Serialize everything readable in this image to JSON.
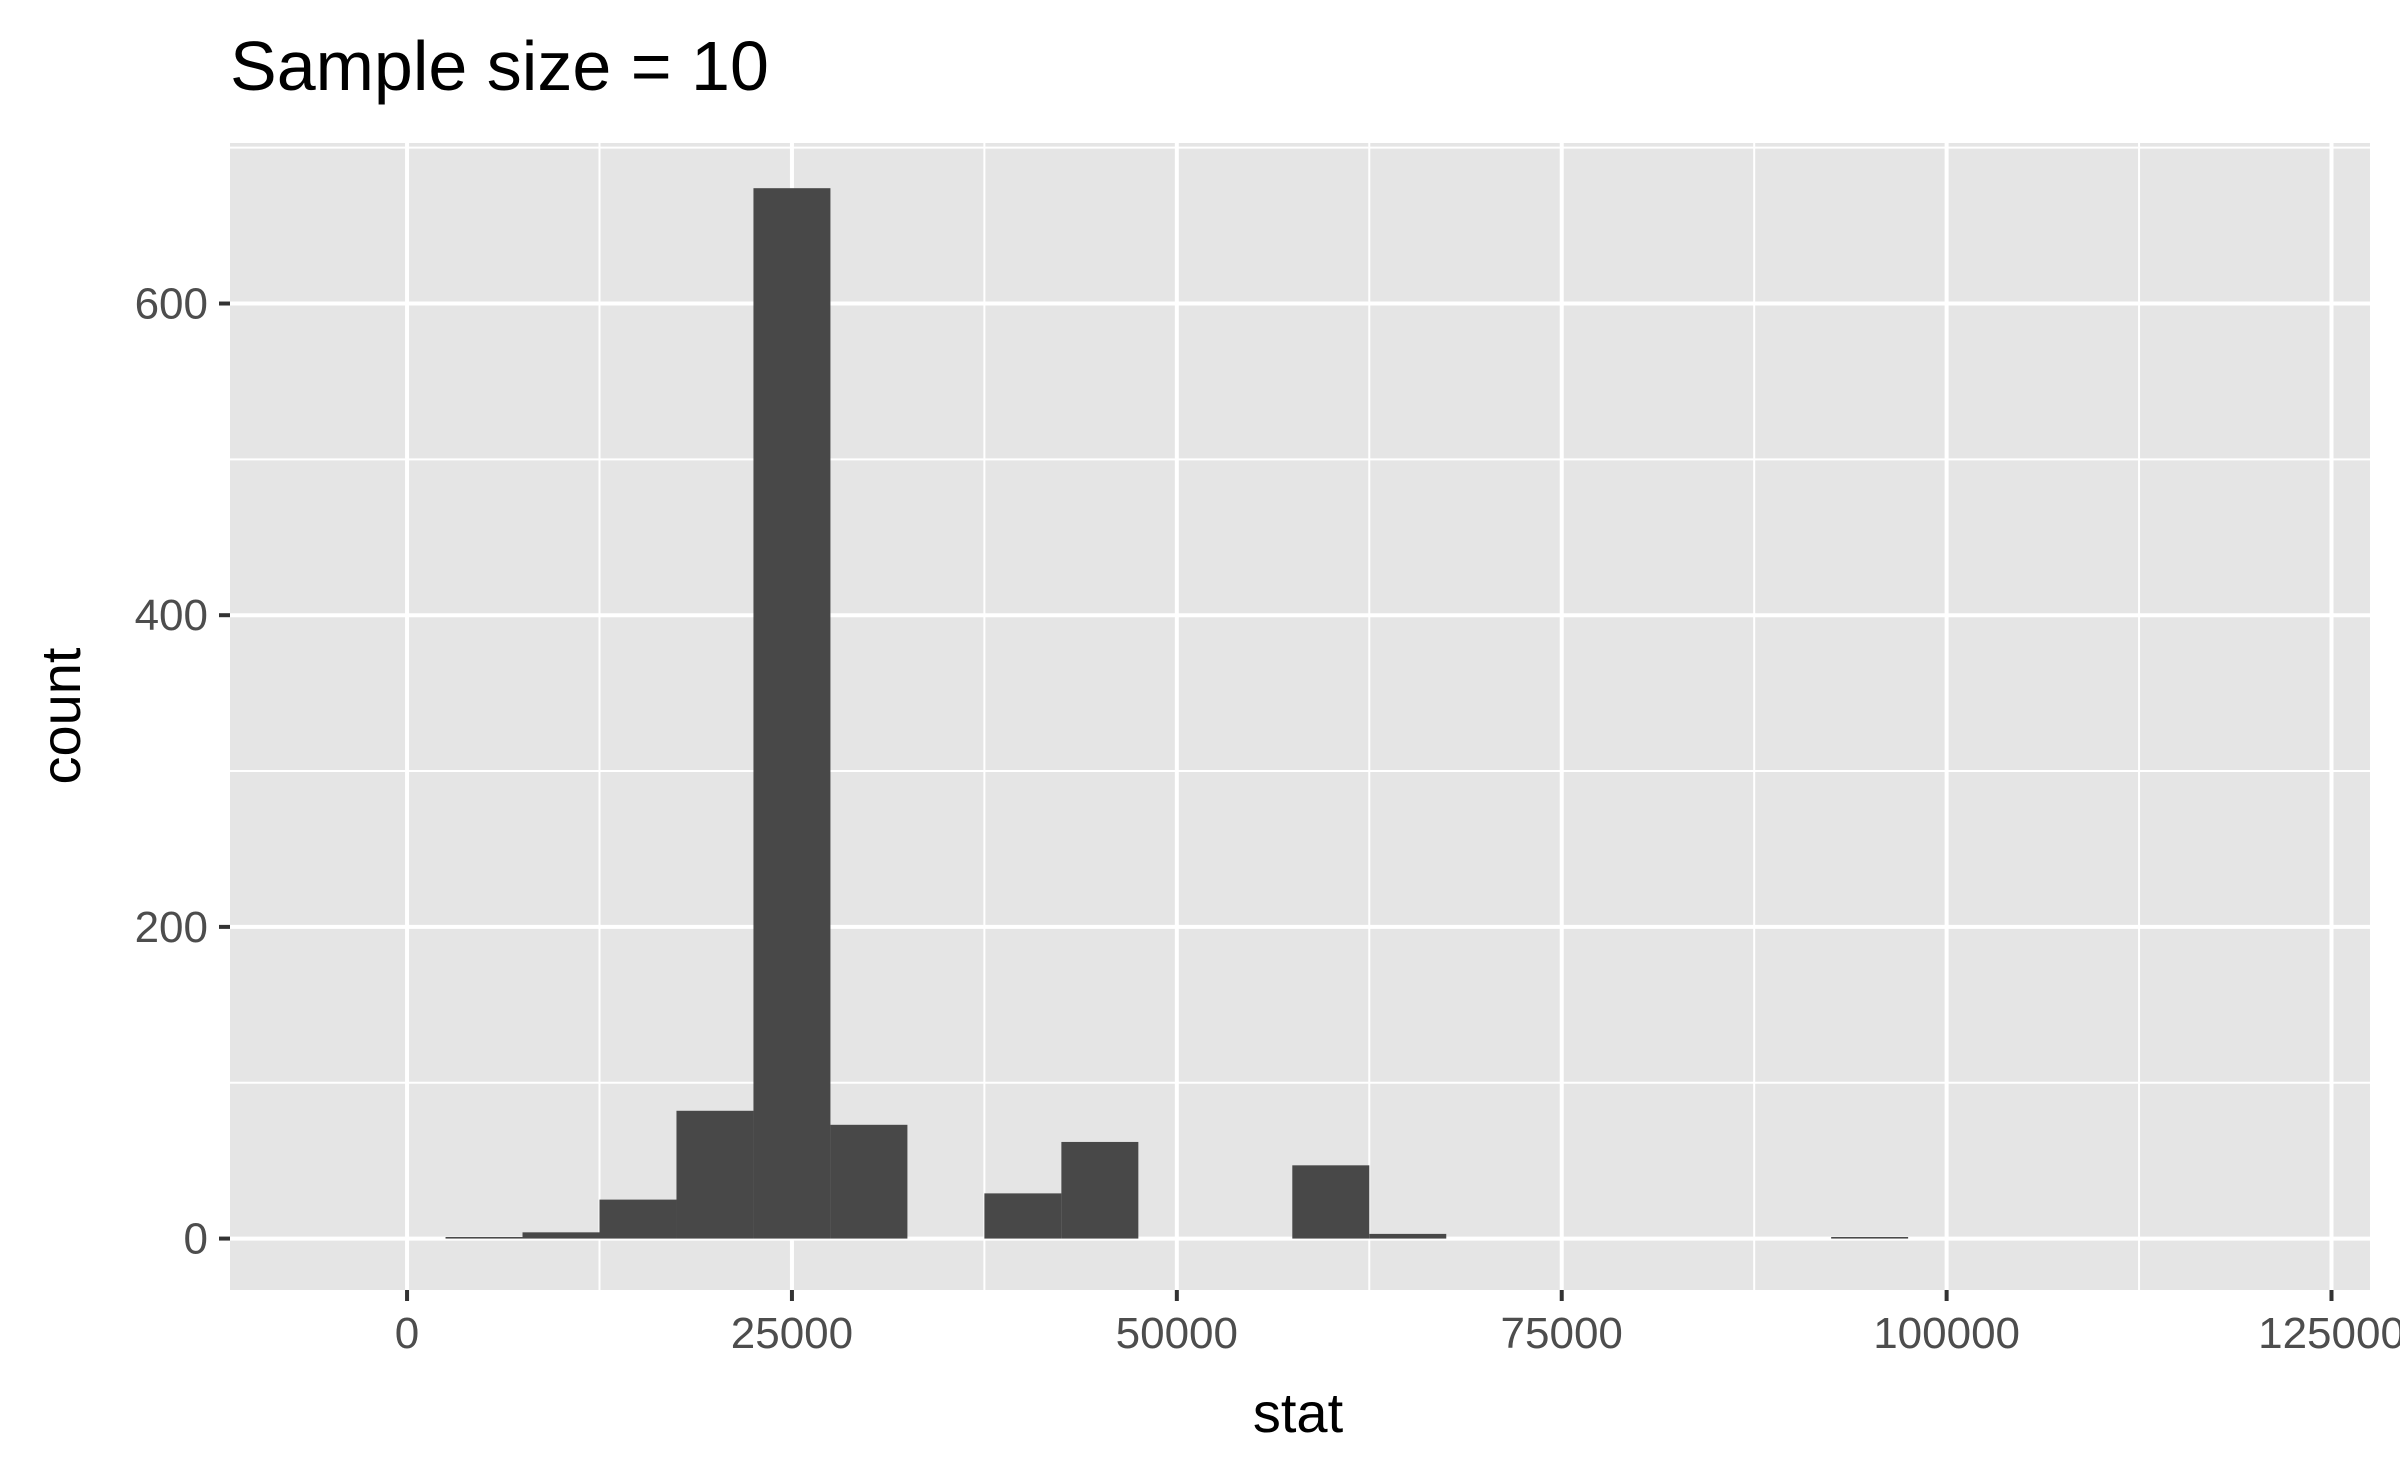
{
  "chart_data": {
    "type": "bar",
    "title": "Sample size = 10",
    "xlabel": "stat",
    "ylabel": "count",
    "xlim": [
      -11500,
      127500
    ],
    "ylim": [
      -33,
      703
    ],
    "x_major_ticks": [
      0,
      25000,
      50000,
      75000,
      100000,
      125000
    ],
    "x_tick_labels": [
      "0",
      "25000",
      "50000",
      "75000",
      "100000",
      "125000"
    ],
    "x_minor_ticks": [
      12500,
      37500,
      62500,
      87500,
      112500
    ],
    "y_major_ticks": [
      0,
      200,
      400,
      600
    ],
    "y_tick_labels": [
      "0",
      "200",
      "400",
      "600"
    ],
    "y_minor_ticks": [
      100,
      300,
      500,
      700
    ],
    "grid": true,
    "bin_width": 5000,
    "bin_centers": [
      5000,
      10000,
      15000,
      20000,
      25000,
      30000,
      35000,
      40000,
      45000,
      50000,
      55000,
      60000,
      65000,
      70000,
      75000,
      80000,
      85000,
      90000,
      95000
    ],
    "values": [
      1,
      4,
      25,
      82,
      674,
      73,
      0,
      29,
      62,
      0,
      0,
      47,
      3,
      0,
      0,
      0,
      0,
      0,
      1
    ],
    "colors": {
      "panel": "#e5e5e5",
      "grid": "#ffffff",
      "bar": "#484848",
      "tick": "#333333"
    }
  }
}
